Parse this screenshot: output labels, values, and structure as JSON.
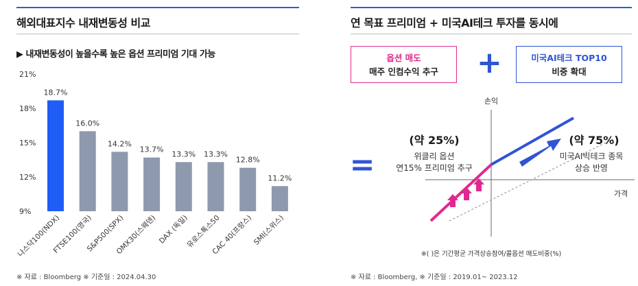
{
  "left": {
    "title": "해외대표지수 내재변동성 비교",
    "subtitle": "▶ 내재변동성이 높을수록 높은 옵션 프리미엄 기대 가능",
    "source": "※ 자료 : Bloomberg ※ 기준일 : 2024.04.30"
  },
  "right": {
    "title": "연 목표 프리미엄 + 미국AI테크 투자를 동시에",
    "box_left": {
      "line1": "옵션 매도",
      "line2": "매주 인컴수익 추구"
    },
    "box_right": {
      "line1": "미국AI테크 TOP10",
      "line2": "비중 확대"
    },
    "plus": "+",
    "equals": "=",
    "axis_y_label": "손익",
    "axis_x_label": "가격",
    "left_pct": "(약 25%)",
    "left_desc1": "위클리 옵션",
    "left_desc2": "연15% 프리미엄 추구",
    "right_pct": "(약 75%)",
    "right_desc1": "미국AI빅테크 종목",
    "right_desc2": "상승 반영",
    "footnote": "※( )은 기간평균 가격상승참여/콜옵션 매도비중(%)",
    "source": "※ 자료 : Bloomberg, ※ 기준일 : 2019.01~ 2023.12",
    "colors": {
      "pink": "#e0298f",
      "blue": "#2f54d4"
    }
  },
  "chart_data": {
    "type": "bar",
    "categories": [
      "나스닥100(NDX)",
      "FTSE100(영국)",
      "S&P500(SPX)",
      "OMX30(스웨덴)",
      "DAX (독일)",
      "유로스톡스50",
      "CAC 40(프랑스)",
      "SMI(스위스)"
    ],
    "values": [
      18.7,
      16.0,
      14.2,
      13.7,
      13.3,
      13.3,
      12.8,
      11.2
    ],
    "value_labels": [
      "18.7%",
      "16.0%",
      "14.2%",
      "13.7%",
      "13.3%",
      "13.3%",
      "12.8%",
      "11.2%"
    ],
    "yticks": [
      "21%",
      "18%",
      "15%",
      "12%",
      "9%"
    ],
    "ytick_values": [
      21,
      18,
      15,
      12,
      9
    ],
    "ylim": [
      9,
      21
    ],
    "highlight_index": 0,
    "colors": {
      "highlight": "#1f5df5",
      "default": "#8e99ad"
    },
    "grid": false
  }
}
